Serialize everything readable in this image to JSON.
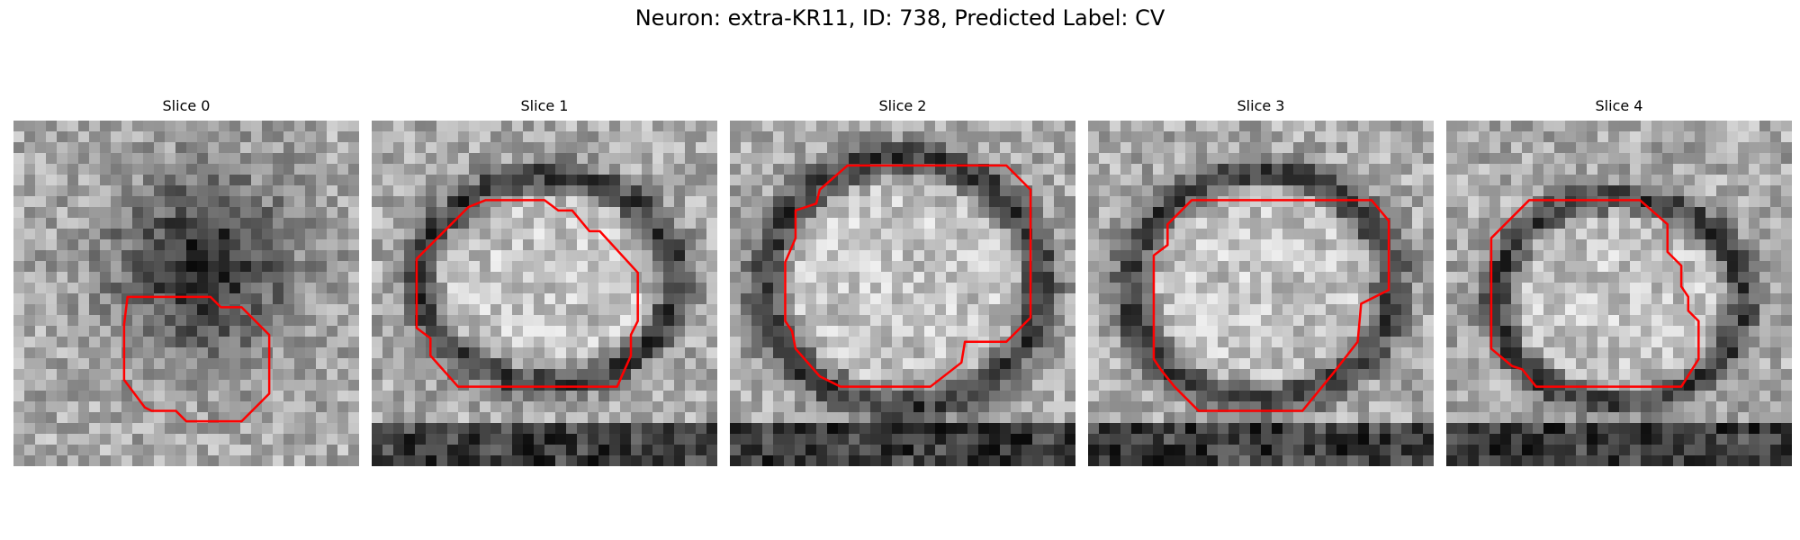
{
  "figure": {
    "title": "Neuron: extra-KR11, ID: 738, Predicted Label: CV",
    "contour_color": "#ff0000",
    "slices": [
      {
        "title": "Slice 0",
        "seed": 11,
        "dark_blob": [
          0.55,
          0.42,
          0.18
        ],
        "bottom_band": false,
        "contour": [
          [
            0.33,
            0.51
          ],
          [
            0.4,
            0.51
          ],
          [
            0.57,
            0.51
          ],
          [
            0.6,
            0.54
          ],
          [
            0.66,
            0.54
          ],
          [
            0.74,
            0.62
          ],
          [
            0.74,
            0.79
          ],
          [
            0.66,
            0.87
          ],
          [
            0.65,
            0.87
          ],
          [
            0.5,
            0.87
          ],
          [
            0.47,
            0.84
          ],
          [
            0.4,
            0.84
          ],
          [
            0.38,
            0.83
          ],
          [
            0.32,
            0.75
          ],
          [
            0.32,
            0.59
          ]
        ]
      },
      {
        "title": "Slice 1",
        "seed": 22,
        "ring": [
          0.51,
          0.46,
          0.37,
          0.3
        ],
        "bottom_band": true,
        "contour": [
          [
            0.13,
            0.4
          ],
          [
            0.28,
            0.25
          ],
          [
            0.33,
            0.23
          ],
          [
            0.5,
            0.23
          ],
          [
            0.54,
            0.26
          ],
          [
            0.58,
            0.26
          ],
          [
            0.63,
            0.32
          ],
          [
            0.66,
            0.32
          ],
          [
            0.77,
            0.44
          ],
          [
            0.77,
            0.58
          ],
          [
            0.75,
            0.62
          ],
          [
            0.75,
            0.68
          ],
          [
            0.71,
            0.77
          ],
          [
            0.66,
            0.77
          ],
          [
            0.25,
            0.77
          ],
          [
            0.17,
            0.68
          ],
          [
            0.17,
            0.63
          ],
          [
            0.13,
            0.6
          ]
        ]
      },
      {
        "title": "Slice 2",
        "seed": 33,
        "ring": [
          0.5,
          0.47,
          0.4,
          0.36
        ],
        "bottom_band": true,
        "contour": [
          [
            0.34,
            0.13
          ],
          [
            0.8,
            0.13
          ],
          [
            0.87,
            0.2
          ],
          [
            0.87,
            0.57
          ],
          [
            0.8,
            0.64
          ],
          [
            0.68,
            0.64
          ],
          [
            0.67,
            0.7
          ],
          [
            0.58,
            0.77
          ],
          [
            0.32,
            0.77
          ],
          [
            0.26,
            0.74
          ],
          [
            0.19,
            0.66
          ],
          [
            0.18,
            0.61
          ],
          [
            0.16,
            0.58
          ],
          [
            0.16,
            0.41
          ],
          [
            0.19,
            0.34
          ],
          [
            0.19,
            0.26
          ],
          [
            0.25,
            0.24
          ],
          [
            0.26,
            0.2
          ]
        ]
      },
      {
        "title": "Slice 3",
        "seed": 44,
        "ring": [
          0.5,
          0.48,
          0.38,
          0.33
        ],
        "bottom_band": true,
        "contour": [
          [
            0.3,
            0.23
          ],
          [
            0.82,
            0.23
          ],
          [
            0.87,
            0.29
          ],
          [
            0.87,
            0.49
          ],
          [
            0.79,
            0.53
          ],
          [
            0.78,
            0.64
          ],
          [
            0.71,
            0.73
          ],
          [
            0.62,
            0.84
          ],
          [
            0.32,
            0.84
          ],
          [
            0.25,
            0.77
          ],
          [
            0.21,
            0.72
          ],
          [
            0.19,
            0.69
          ],
          [
            0.19,
            0.39
          ],
          [
            0.23,
            0.36
          ],
          [
            0.23,
            0.3
          ]
        ]
      },
      {
        "title": "Slice 4",
        "seed": 55,
        "ring": [
          0.5,
          0.52,
          0.36,
          0.3
        ],
        "bottom_band": true,
        "contour": [
          [
            0.13,
            0.34
          ],
          [
            0.24,
            0.23
          ],
          [
            0.56,
            0.23
          ],
          [
            0.64,
            0.3
          ],
          [
            0.64,
            0.38
          ],
          [
            0.68,
            0.42
          ],
          [
            0.68,
            0.48
          ],
          [
            0.7,
            0.51
          ],
          [
            0.7,
            0.55
          ],
          [
            0.73,
            0.58
          ],
          [
            0.73,
            0.69
          ],
          [
            0.68,
            0.77
          ],
          [
            0.26,
            0.77
          ],
          [
            0.22,
            0.72
          ],
          [
            0.19,
            0.71
          ],
          [
            0.13,
            0.66
          ]
        ]
      }
    ]
  }
}
